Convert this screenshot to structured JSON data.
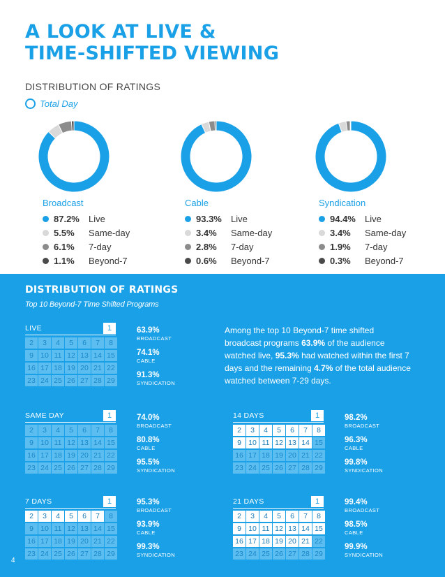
{
  "header": {
    "title_line1": "A LOOK AT LIVE &",
    "title_line2": "TIME-SHIFTED VIEWING",
    "subtitle": "DISTRIBUTION OF RATINGS",
    "legend_label": "Total Day"
  },
  "colors": {
    "accent": "#1aa0e6",
    "live": "#1aa0e6",
    "same_day": "#d9d9d9",
    "seven_day": "#8c8c8c",
    "beyond_seven": "#4a4a4a"
  },
  "chart_data": [
    {
      "type": "pie",
      "title": "Broadcast",
      "labels": [
        "Live",
        "Same-day",
        "7-day",
        "Beyond-7"
      ],
      "values": [
        87.2,
        5.5,
        6.1,
        1.1
      ],
      "value_labels": [
        "87.2%",
        "5.5%",
        "6.1%",
        "1.1%"
      ]
    },
    {
      "type": "pie",
      "title": "Cable",
      "labels": [
        "Live",
        "Same-day",
        "7-day",
        "Beyond-7"
      ],
      "values": [
        93.3,
        3.4,
        2.8,
        0.6
      ],
      "value_labels": [
        "93.3%",
        "3.4%",
        "2.8%",
        "0.6%"
      ]
    },
    {
      "type": "pie",
      "title": "Syndication",
      "labels": [
        "Live",
        "Same-day",
        "7-day",
        "Beyond-7"
      ],
      "values": [
        94.4,
        3.4,
        1.9,
        0.3
      ],
      "value_labels": [
        "94.4%",
        "3.4%",
        "1.9%",
        "0.3%"
      ]
    },
    {
      "type": "table",
      "title": "DISTRIBUTION OF RATINGS",
      "subtitle": "Top 10 Beyond-7 Time Shifted Programs",
      "rows": [
        {
          "period": "LIVE",
          "broadcast": "63.9%",
          "cable": "74.1%",
          "syndication": "91.3%"
        },
        {
          "period": "SAME DAY",
          "broadcast": "74.0%",
          "cable": "80.8%",
          "syndication": "95.5%"
        },
        {
          "period": "7 DAYS",
          "broadcast": "95.3%",
          "cable": "93.9%",
          "syndication": "99.3%"
        },
        {
          "period": "14 DAYS",
          "broadcast": "98.2%",
          "cable": "96.3%",
          "syndication": "99.8%"
        },
        {
          "period": "21 DAYS",
          "broadcast": "99.4%",
          "cable": "98.5%",
          "syndication": "99.9%"
        }
      ]
    }
  ],
  "bottom": {
    "title": "DISTRIBUTION OF RATINGS",
    "subtitle": "Top 10 Beyond-7 Time Shifted Programs",
    "day_one": "1",
    "days": [
      "2",
      "3",
      "4",
      "5",
      "6",
      "7",
      "8",
      "9",
      "10",
      "11",
      "12",
      "13",
      "14",
      "15",
      "16",
      "17",
      "18",
      "19",
      "20",
      "21",
      "22",
      "23",
      "24",
      "25",
      "26",
      "27",
      "28",
      "29"
    ],
    "stat_labels": [
      "BROADCAST",
      "CABLE",
      "SYNDICATION"
    ],
    "calendars": [
      {
        "name": "LIVE",
        "highlight_through": 1,
        "values": [
          "63.9%",
          "74.1%",
          "91.3%"
        ]
      },
      {
        "name": "SAME DAY",
        "highlight_through": 1,
        "values": [
          "74.0%",
          "80.8%",
          "95.5%"
        ]
      },
      {
        "name": "7 DAYS",
        "highlight_through": 7,
        "values": [
          "95.3%",
          "93.9%",
          "99.3%"
        ]
      },
      {
        "name": "14 DAYS",
        "highlight_through": 14,
        "values": [
          "98.2%",
          "96.3%",
          "99.8%"
        ]
      },
      {
        "name": "21 DAYS",
        "highlight_through": 21,
        "values": [
          "99.4%",
          "98.5%",
          "99.9%"
        ]
      }
    ],
    "paragraph": {
      "t1": "Among the top 10 Beyond-7 time shifted broadcast programs ",
      "b1": "63.9%",
      "t2": " of the audience watched live, ",
      "b2": "95.3%",
      "t3": " had watched within the first 7 days and the remaining ",
      "b3": "4.7%",
      "t4": " of the total audience watched between 7-29 days."
    },
    "page_number": "4"
  }
}
